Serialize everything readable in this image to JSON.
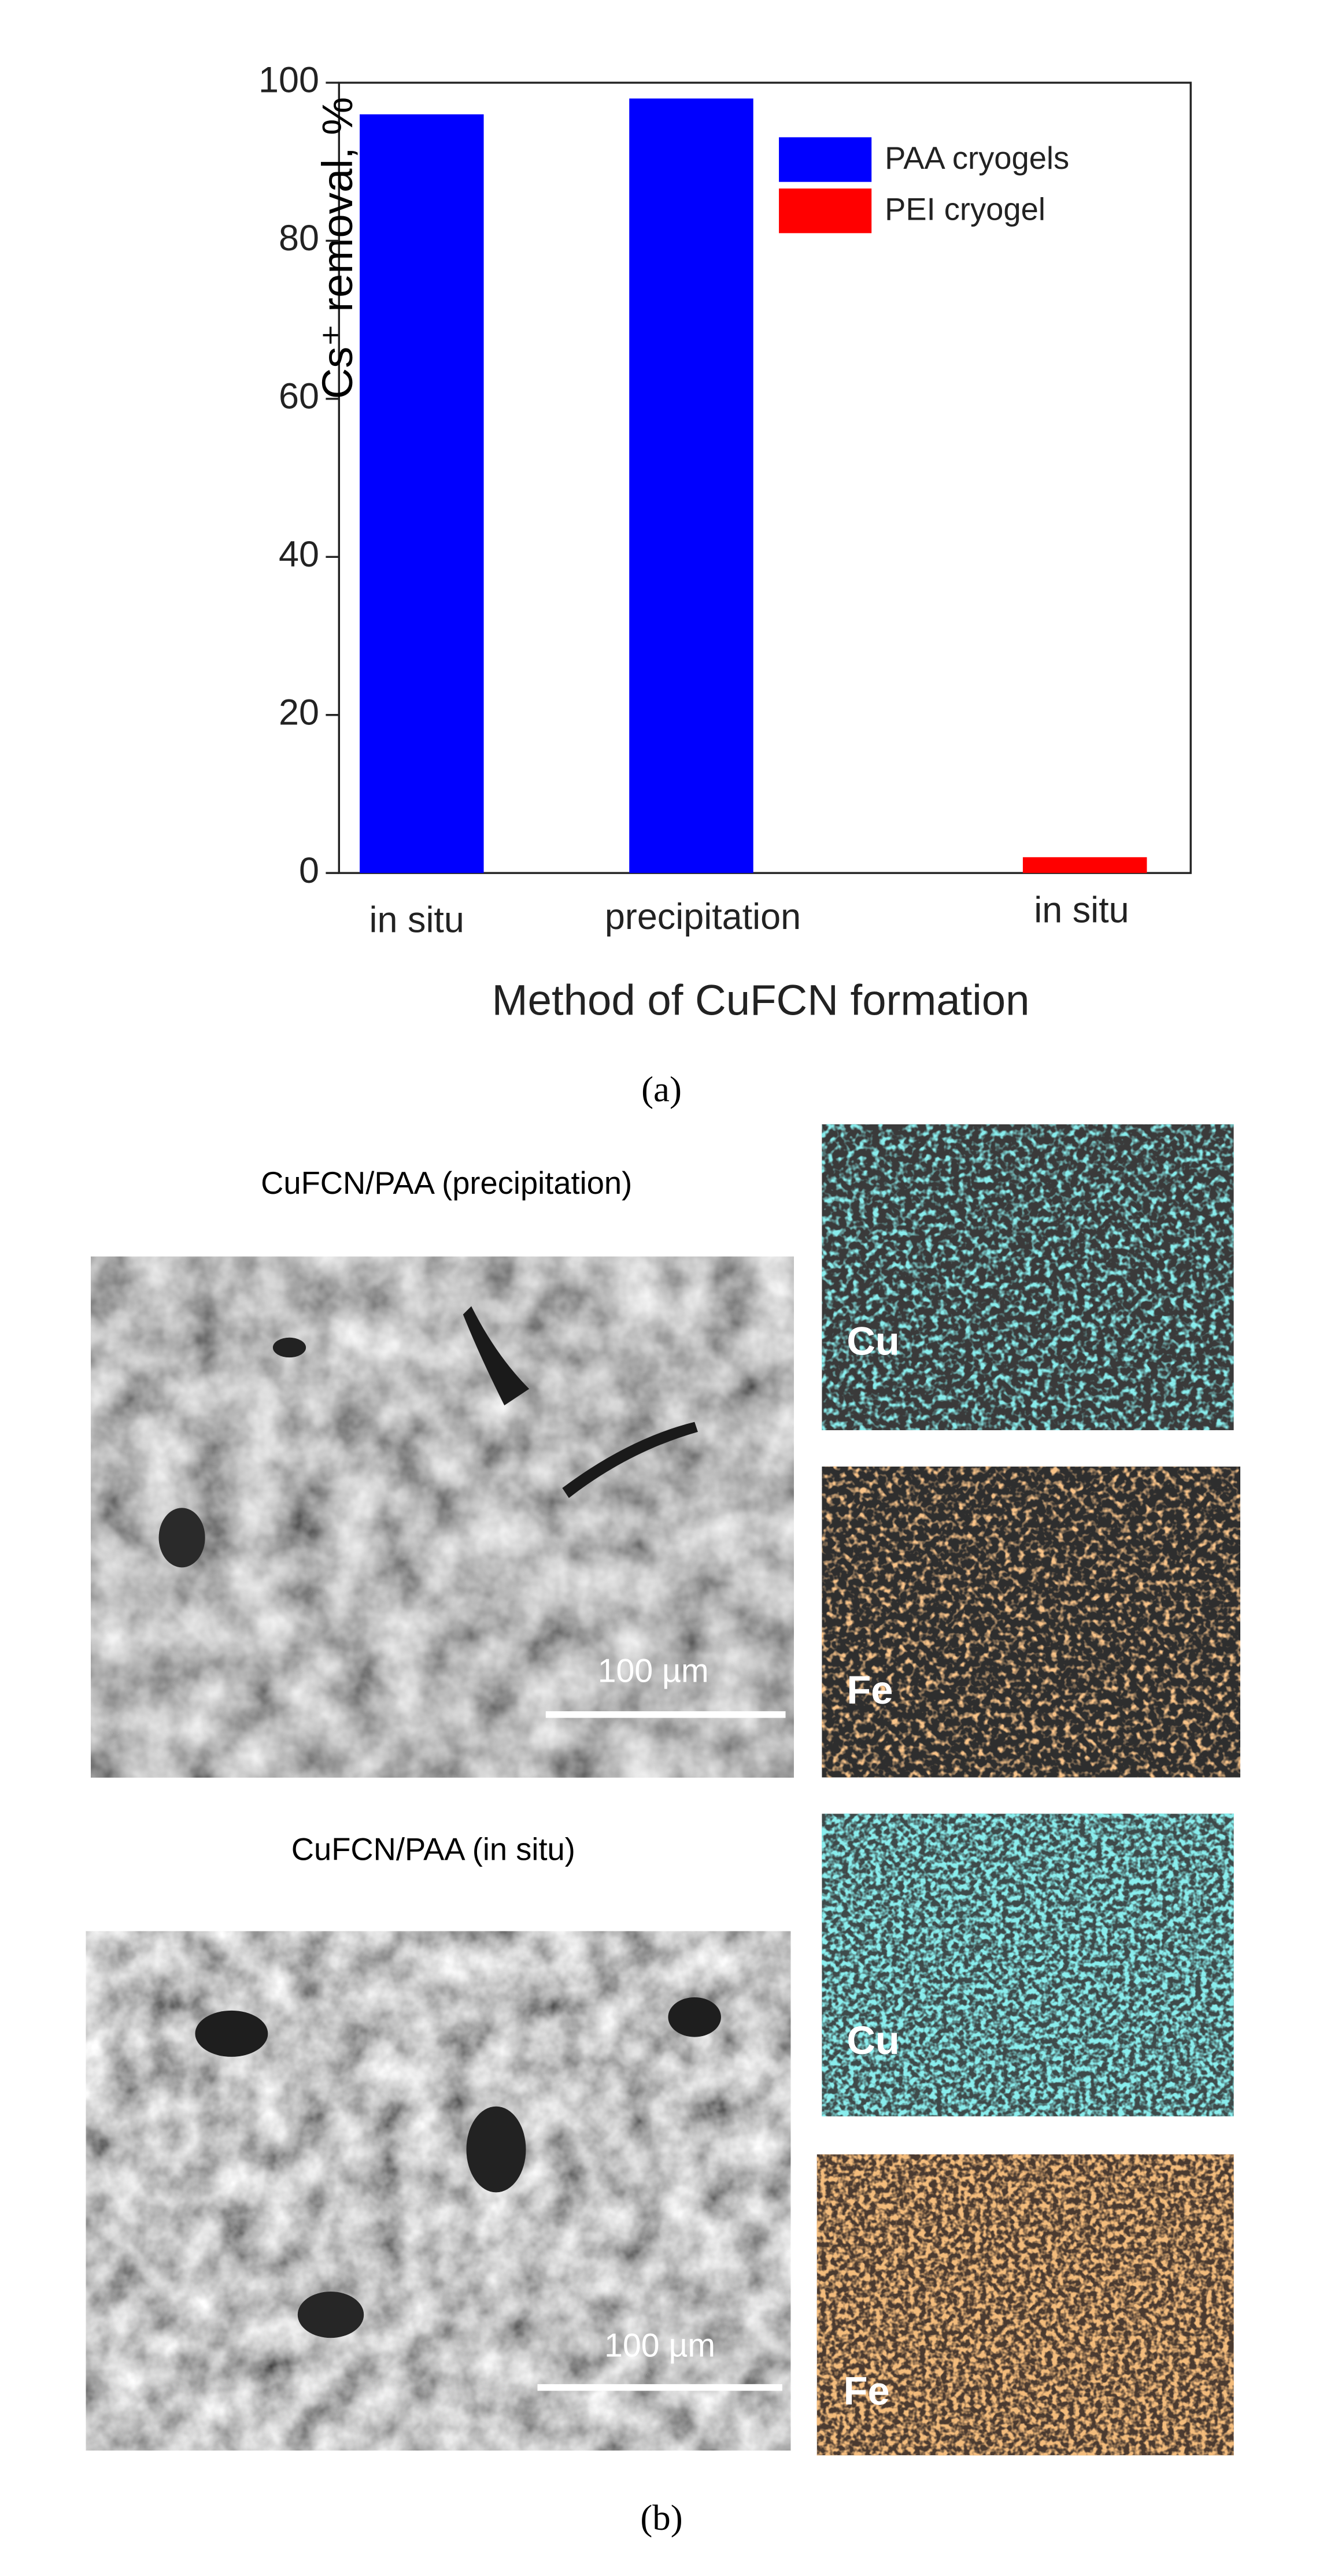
{
  "chart_data": {
    "type": "bar",
    "categories": [
      "in situ",
      "precipitation",
      "in situ"
    ],
    "series": [
      {
        "name": "PAA cryogels",
        "color": "#0000ff",
        "values": [
          96,
          98,
          null
        ]
      },
      {
        "name": "PEI cryogel",
        "color": "#ff0000",
        "values": [
          null,
          null,
          2
        ]
      }
    ],
    "ylim": [
      0,
      100
    ],
    "yticks": [
      0,
      20,
      40,
      60,
      80,
      100
    ],
    "y_label": "Cs⁺ removal, %",
    "x_label": "Method of CuFCN formation",
    "legend": "upper right",
    "panel_label": "(a)"
  },
  "panel_b": {
    "label": "(b)",
    "rows": [
      {
        "title": "CuFCN/PAA (precipitation)",
        "scale_bar": "100 µm",
        "maps": [
          "Cu",
          "Fe"
        ]
      },
      {
        "title": "CuFCN/PAA (in situ)",
        "scale_bar": "100 µm",
        "maps": [
          "Cu",
          "Fe"
        ]
      }
    ]
  }
}
